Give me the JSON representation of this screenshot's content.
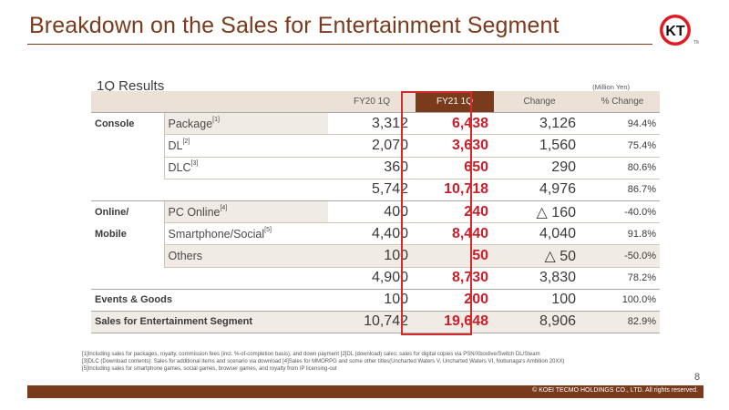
{
  "header": {
    "title": "Breakdown on the Sales for Entertainment Segment",
    "logo_text": "KT",
    "logo_tm": "TM"
  },
  "section": {
    "subtitle": "1Q Results",
    "unit": "(Million Yen)"
  },
  "table": {
    "columns": [
      "FY20 1Q",
      "FY21 1Q",
      "Change",
      "% Change"
    ],
    "rows": [
      {
        "group": "Console",
        "item": "Package",
        "ref": "[1]",
        "fy20": "3,312",
        "fy21": "6,438",
        "change": "3,126",
        "pct": "94.4%"
      },
      {
        "group": "",
        "item": "DL",
        "ref": "[2]",
        "fy20": "2,070",
        "fy21": "3,630",
        "change": "1,560",
        "pct": "75.4%"
      },
      {
        "group": "",
        "item": "DLC",
        "ref": "[3]",
        "fy20": "360",
        "fy21": "650",
        "change": "290",
        "pct": "80.6%"
      },
      {
        "group": "",
        "item": "",
        "ref": "",
        "fy20": "5,742",
        "fy21": "10,718",
        "change": "4,976",
        "pct": "86.7%"
      },
      {
        "group": "Online/",
        "item": "PC Online",
        "ref": "[4]",
        "fy20": "400",
        "fy21": "240",
        "change": "△ 160",
        "pct": "-40.0%"
      },
      {
        "group": "Mobile",
        "item": "Smartphone/Social",
        "ref": "[5]",
        "fy20": "4,400",
        "fy21": "8,440",
        "change": "4,040",
        "pct": "91.8%"
      },
      {
        "group": "",
        "item": "Others",
        "ref": "",
        "fy20": "100",
        "fy21": "50",
        "change": "△ 50",
        "pct": "-50.0%"
      },
      {
        "group": "",
        "item": "",
        "ref": "",
        "fy20": "4,900",
        "fy21": "8,730",
        "change": "3,830",
        "pct": "78.2%"
      },
      {
        "group": "Events & Goods",
        "item": "",
        "ref": "",
        "fy20": "100",
        "fy21": "200",
        "change": "100",
        "pct": "100.0%"
      },
      {
        "group": "Sales for Entertainment Segment",
        "item": "",
        "ref": "",
        "fy20": "10,742",
        "fy21": "19,648",
        "change": "8,906",
        "pct": "82.9%"
      }
    ]
  },
  "notes": [
    "[1]Including sales for packages, royalty, commission fees (incl. %-of-completion basis), and down payment [2]DL (download) sales: sales for digital copies via PSN/Xboxlive/Switch DL/Steam",
    "[3]DLC (Download contents): Sales for additional items and scenario via download [4]Sales for MMORPG and some other titles(Uncharted Waters V, Uncharted Waters VI, Nobunaga's Ambition 20XX)",
    "[5]Including sales for smartphone games, social games, browser games, and royalty from IP licensing-out"
  ],
  "page_number": "8",
  "footer": {
    "copyright": "© KOEI TECMO HOLDINGS CO., LTD. All rights reserved."
  },
  "colors": {
    "brand": "#7a3a1c",
    "highlight": "#c8202c",
    "shade": "#f1ebe5"
  }
}
